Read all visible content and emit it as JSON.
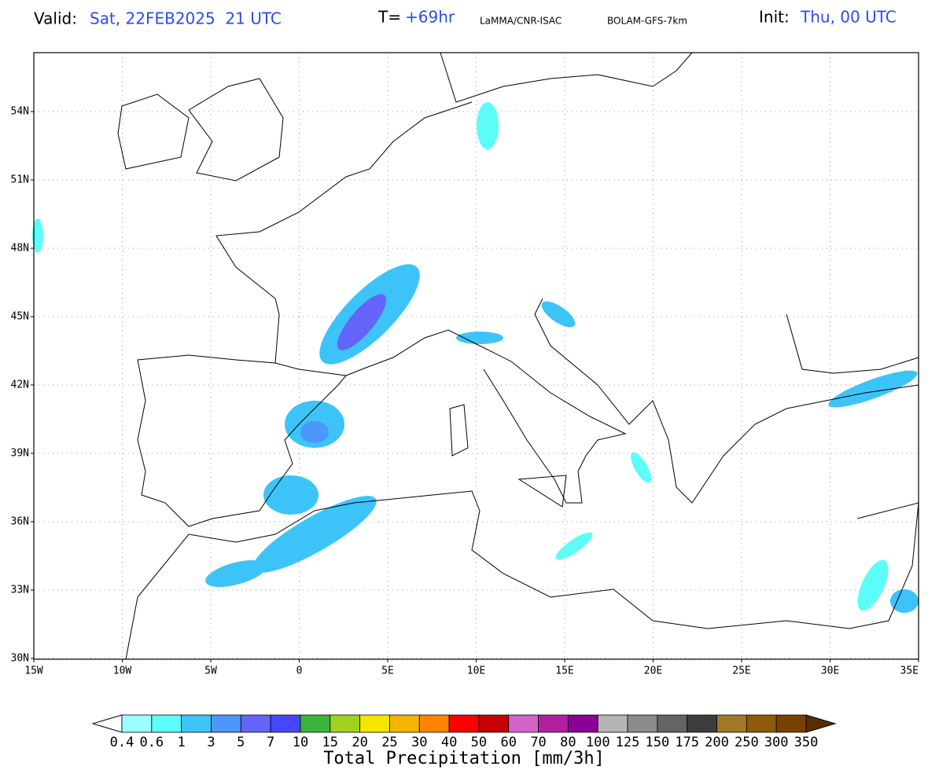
{
  "header": {
    "valid_label": "Valid:",
    "valid_value": "Sat, 22FEB2025  21 UTC",
    "t_label": "T=",
    "t_value": "+69hr",
    "source": "LaMMA/CNR-ISAC",
    "model": "BOLAM-GFS-7km",
    "init_label": "Init:",
    "init_value": "Thu, 00 UTC"
  },
  "map": {
    "lat_labels": [
      "54N",
      "51N",
      "48N",
      "45N",
      "42N",
      "39N",
      "36N",
      "33N",
      "30N"
    ],
    "lon_labels": [
      "15W",
      "10W",
      "5W",
      "0",
      "5E",
      "10E",
      "15E",
      "20E",
      "25E",
      "30E",
      "35E"
    ]
  },
  "colorbar": {
    "labels": [
      "0.4",
      "0.6",
      "1",
      "3",
      "5",
      "7",
      "10",
      "15",
      "20",
      "25",
      "30",
      "40",
      "50",
      "60",
      "70",
      "80",
      "100",
      "125",
      "150",
      "175",
      "200",
      "250",
      "300",
      "350"
    ],
    "colors": [
      "#ffffff",
      "#9bffff",
      "#5cfdf9",
      "#3cc4f9",
      "#4b97fa",
      "#6464fa",
      "#4646fa",
      "#3cb43c",
      "#a0d21e",
      "#f5e600",
      "#f5b400",
      "#ff8200",
      "#fa0000",
      "#c80000",
      "#d264c8",
      "#b41ea0",
      "#8c0096",
      "#b4b4b4",
      "#8c8c8c",
      "#646464",
      "#3c3c3c",
      "#a07828",
      "#8c5a0a",
      "#784100",
      "#5a2d00"
    ],
    "title": "Total Precipitation [mm/3h]"
  }
}
